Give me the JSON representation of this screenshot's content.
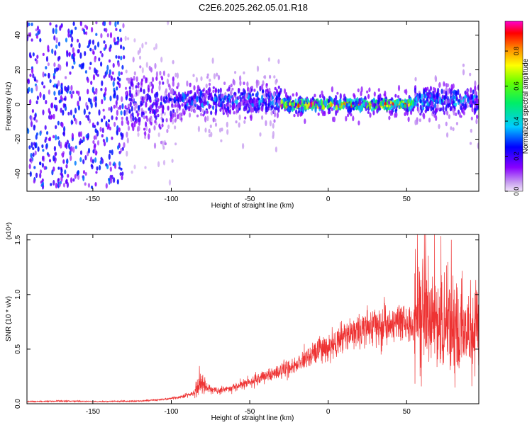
{
  "title": "C2E6.2025.262.05.01.R18",
  "chart_data": [
    {
      "type": "heatmap",
      "title": "C2E6.2025.262.05.01.R18",
      "xlabel": "Height of straight line (km)",
      "ylabel": "Frequency (Hz)",
      "xlim": [
        -192,
        96
      ],
      "ylim": [
        -50,
        48
      ],
      "xticks": [
        "-150",
        "-100",
        "-50",
        "0",
        "50"
      ],
      "yticks": [
        "-40",
        "-20",
        "0",
        "20",
        "40"
      ],
      "colorbar": {
        "label": "Normalized spectral amplitude",
        "range": [
          0,
          0.97
        ],
        "ticks": [
          "0.0",
          "0.2",
          "0.4",
          "0.6",
          "0.8"
        ]
      },
      "segments": [
        {
          "x": [
            -192,
            -130
          ],
          "center_hz": 0,
          "spread_hz": 48,
          "amplitude": 0.25
        },
        {
          "x": [
            -130,
            -98
          ],
          "center_hz": 0,
          "spread_hz": 30,
          "amplitude": 0.22
        },
        {
          "x": [
            -98,
            -30
          ],
          "center_hz": 2,
          "spread_hz": 14,
          "amplitude": 0.3
        },
        {
          "x": [
            -30,
            55
          ],
          "center_hz": 0,
          "spread_hz": 5,
          "amplitude": 0.75
        },
        {
          "x": [
            55,
            96
          ],
          "center_hz": 2,
          "spread_hz": 12,
          "amplitude": 0.35
        }
      ]
    },
    {
      "type": "line",
      "xlabel": "Height of straight line (km)",
      "ylabel": "SNR (10 * v/v)",
      "y_multiplier": "(x10⁴)",
      "xlim": [
        -192,
        96
      ],
      "ylim": [
        0,
        1.55
      ],
      "xticks": [
        "-150",
        "-100",
        "-50",
        "0",
        "50"
      ],
      "yticks": [
        "0.0",
        "0.5",
        "1.0",
        "1.5"
      ],
      "color": "#ee3333",
      "x": [
        -192,
        -170,
        -150,
        -120,
        -105,
        -95,
        -85,
        -82,
        -78,
        -70,
        -60,
        -50,
        -40,
        -30,
        -20,
        -15,
        -10,
        -5,
        0,
        10,
        20,
        30,
        40,
        45,
        50,
        55,
        60,
        63,
        70,
        80,
        90,
        96
      ],
      "y": [
        0.02,
        0.025,
        0.02,
        0.025,
        0.04,
        0.06,
        0.1,
        0.2,
        0.15,
        0.12,
        0.15,
        0.2,
        0.25,
        0.3,
        0.35,
        0.42,
        0.45,
        0.5,
        0.52,
        0.6,
        0.68,
        0.72,
        0.74,
        0.74,
        0.7,
        0.72,
        0.8,
        0.85,
        0.75,
        0.7,
        0.65,
        0.68
      ]
    }
  ]
}
